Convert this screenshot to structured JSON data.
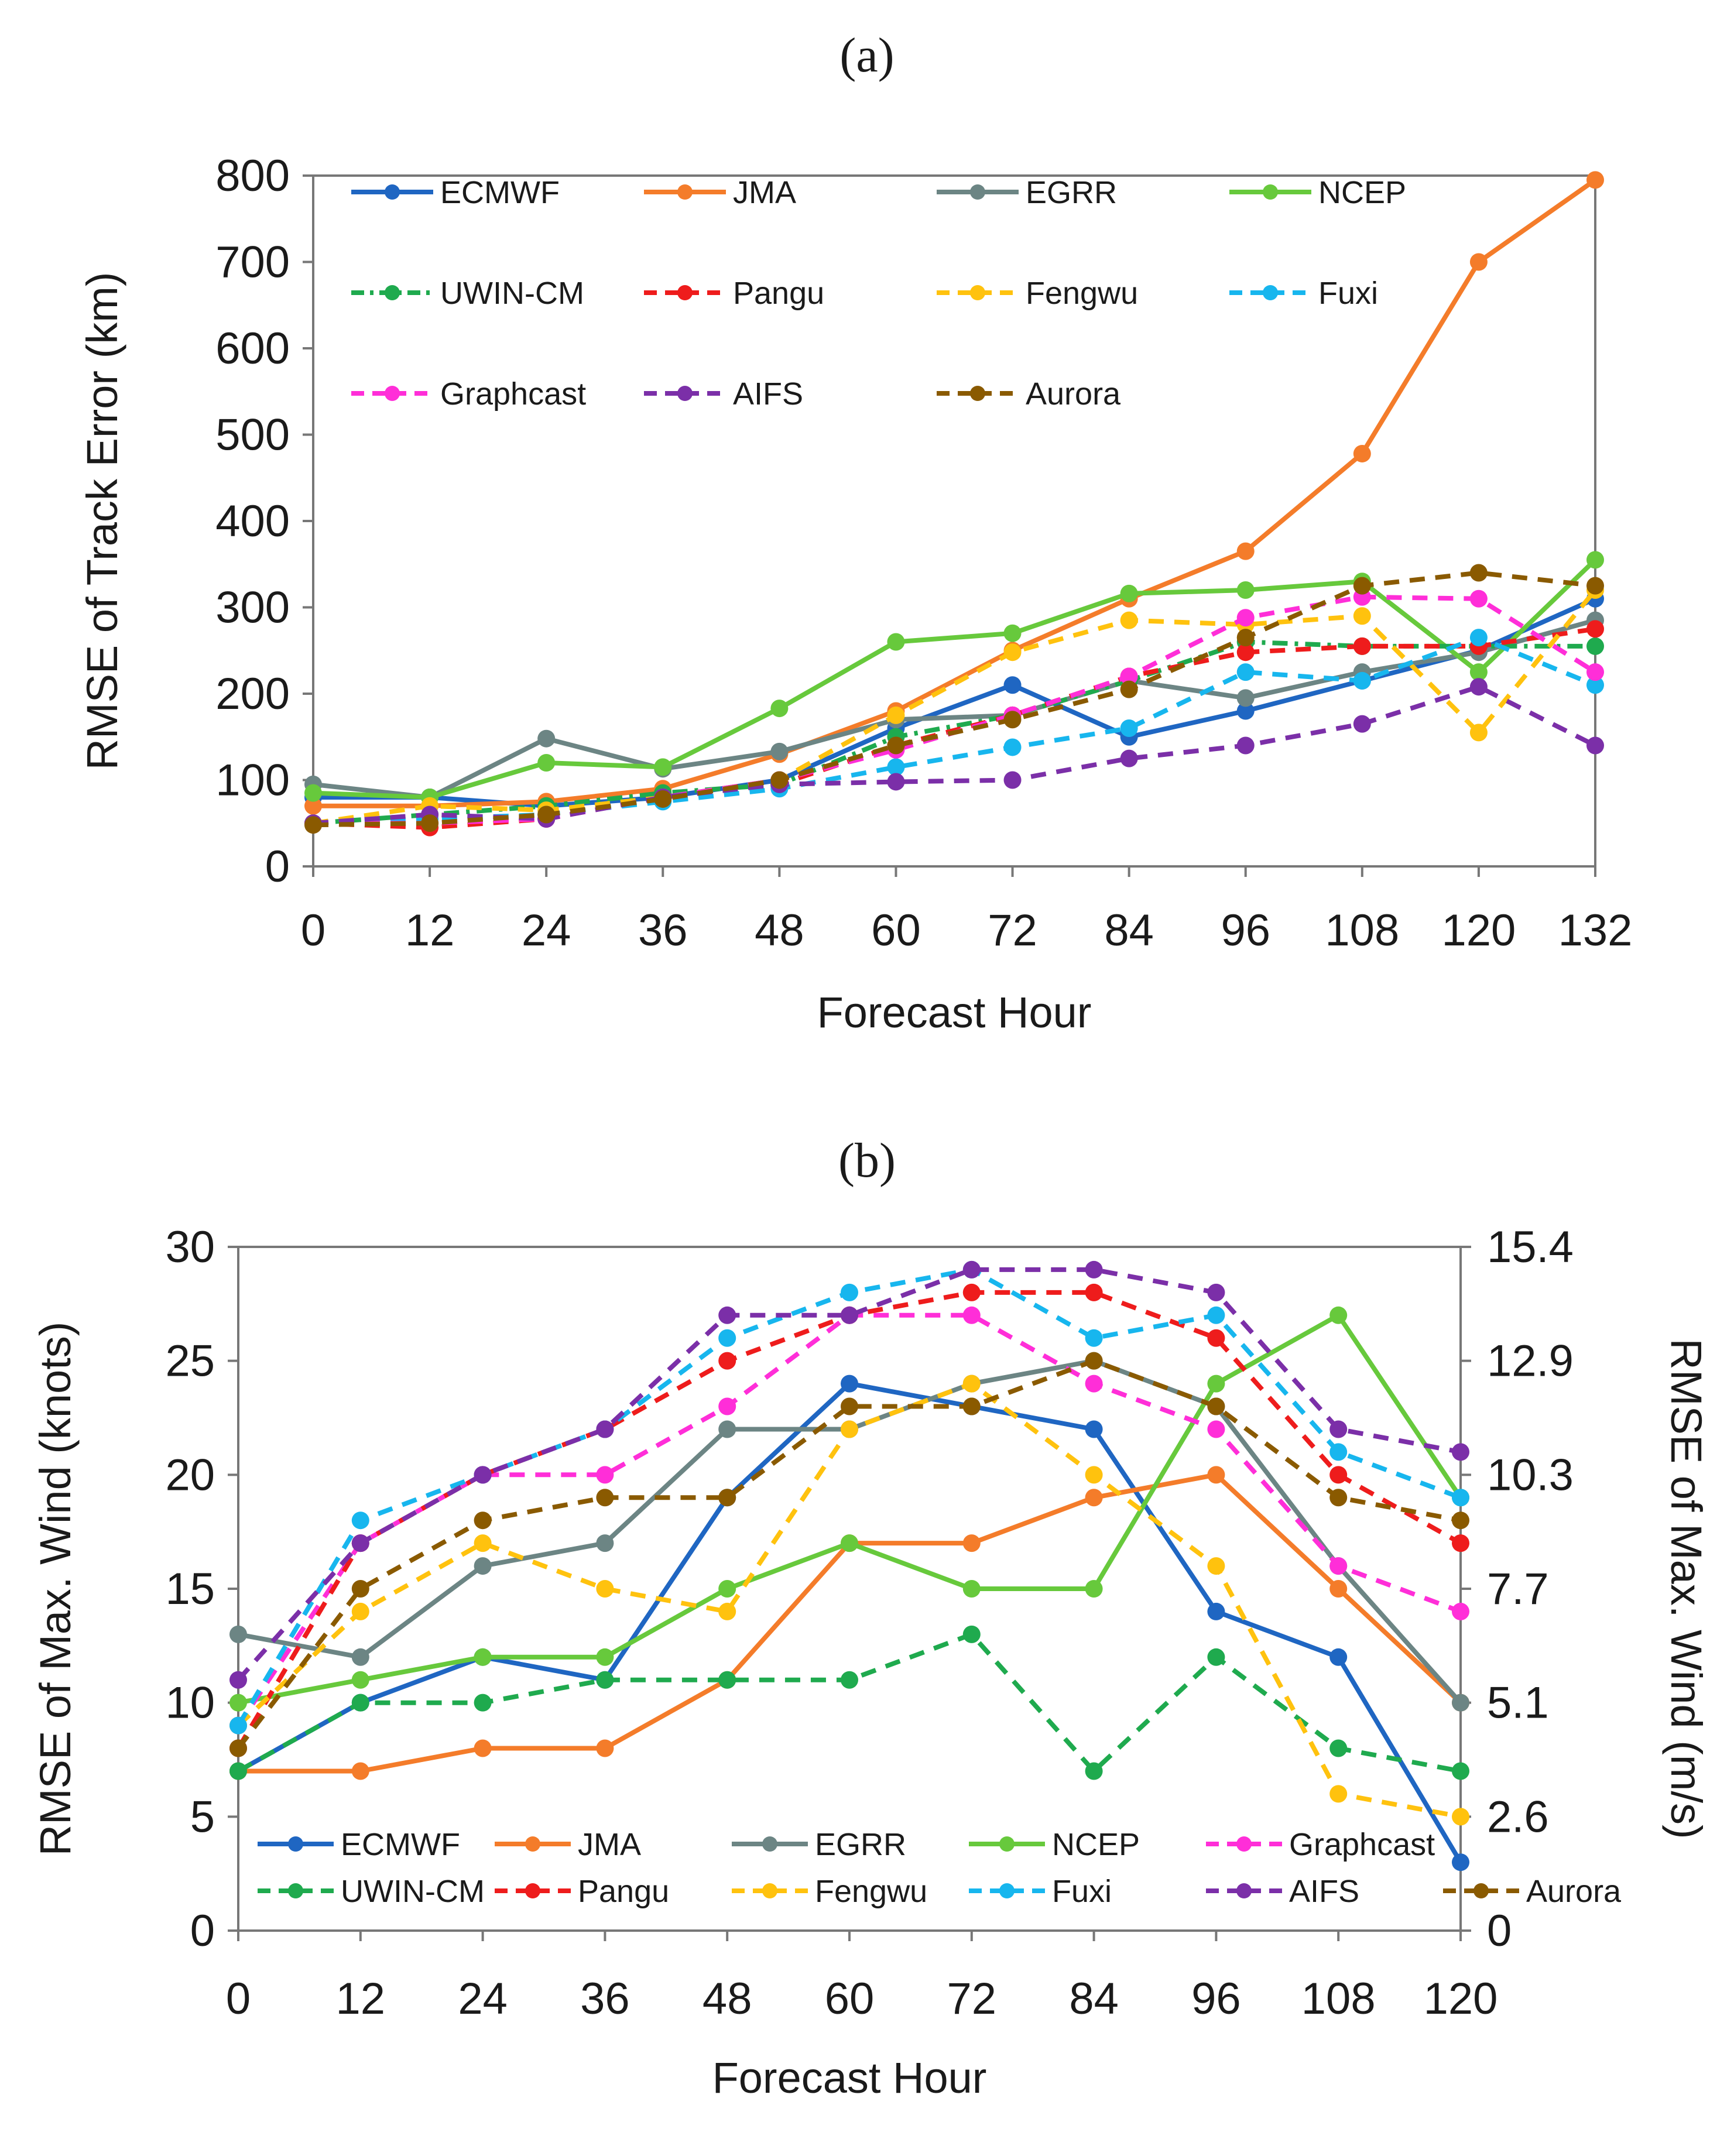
{
  "panels": {
    "a": "(a)",
    "b": "(b)"
  },
  "colors": {
    "ECMWF": "#1f66c2",
    "JMA": "#f47c2a",
    "EGRR": "#6c8584",
    "NCEP": "#67c93c",
    "UWIN-CM": "#1faa4e",
    "Pangu": "#ee1c1c",
    "Fengwu": "#ffc20e",
    "Fuxi": "#17b6ee",
    "Graphcast": "#ff2ed8",
    "AIFS": "#7b2fa8",
    "Aurora": "#8a5a00"
  },
  "chart_data": [
    {
      "id": "a",
      "type": "line",
      "xlabel": "Forecast Hour",
      "ylabel": "RMSE of Track Error (km)",
      "x": [
        0,
        12,
        24,
        36,
        48,
        60,
        72,
        84,
        96,
        108,
        120,
        132
      ],
      "xlim": [
        0,
        132
      ],
      "ylim": [
        0,
        800
      ],
      "yticks": [
        0,
        100,
        200,
        300,
        400,
        500,
        600,
        700,
        800
      ],
      "legend_rows": [
        [
          "ECMWF",
          "JMA",
          "EGRR",
          "NCEP"
        ],
        [
          "UWIN-CM",
          "Pangu",
          "Fengwu",
          "Fuxi"
        ],
        [
          "Graphcast",
          "AIFS",
          "Aurora"
        ]
      ],
      "series": [
        {
          "name": "ECMWF",
          "style": "solid",
          "values": [
            80,
            80,
            70,
            80,
            100,
            160,
            210,
            150,
            180,
            215,
            250,
            310
          ]
        },
        {
          "name": "JMA",
          "style": "solid",
          "values": [
            70,
            70,
            75,
            90,
            130,
            180,
            250,
            310,
            365,
            478,
            700,
            795
          ]
        },
        {
          "name": "EGRR",
          "style": "solid",
          "values": [
            95,
            80,
            148,
            113,
            133,
            170,
            175,
            215,
            195,
            225,
            248,
            285
          ]
        },
        {
          "name": "NCEP",
          "style": "solid",
          "values": [
            85,
            80,
            120,
            115,
            183,
            260,
            270,
            316,
            320,
            330,
            225,
            355
          ]
        },
        {
          "name": "UWIN-CM",
          "style": "dashdot",
          "values": [
            50,
            60,
            70,
            85,
            95,
            150,
            175,
            215,
            260,
            255,
            255,
            255
          ]
        },
        {
          "name": "Pangu",
          "style": "dash",
          "values": [
            50,
            45,
            55,
            80,
            95,
            140,
            175,
            220,
            248,
            255,
            255,
            275
          ]
        },
        {
          "name": "Fengwu",
          "style": "dash",
          "values": [
            50,
            70,
            65,
            80,
            100,
            175,
            248,
            285,
            280,
            290,
            155,
            320
          ]
        },
        {
          "name": "Fuxi",
          "style": "dash",
          "values": [
            50,
            55,
            60,
            75,
            90,
            115,
            138,
            160,
            225,
            215,
            265,
            210
          ]
        },
        {
          "name": "Graphcast",
          "style": "dash",
          "values": [
            50,
            50,
            55,
            80,
            100,
            135,
            175,
            220,
            288,
            312,
            310,
            225
          ]
        },
        {
          "name": "AIFS",
          "style": "dash",
          "values": [
            50,
            60,
            55,
            80,
            95,
            98,
            100,
            125,
            140,
            165,
            208,
            140
          ]
        },
        {
          "name": "Aurora",
          "style": "dash",
          "values": [
            48,
            50,
            60,
            78,
            100,
            140,
            170,
            205,
            265,
            325,
            340,
            325
          ]
        }
      ]
    },
    {
      "id": "b",
      "type": "line",
      "xlabel": "Forecast Hour",
      "ylabel": "RMSE of Max. Wind (knots)",
      "y2label": "RMSE of Max. Wind (m/s)",
      "x": [
        0,
        12,
        24,
        36,
        48,
        60,
        72,
        84,
        96,
        108,
        120
      ],
      "xlim": [
        0,
        120
      ],
      "ylim": [
        0,
        30
      ],
      "yticks": [
        0,
        5,
        10,
        15,
        20,
        25,
        30
      ],
      "y2ticks": [
        "0",
        "2.6",
        "5.1",
        "7.7",
        "10.3",
        "12.9",
        "15.4"
      ],
      "legend_rows": [
        [
          "ECMWF",
          "JMA",
          "EGRR",
          "NCEP",
          "Graphcast"
        ],
        [
          "UWIN-CM",
          "Pangu",
          "Fengwu",
          "Fuxi",
          "AIFS",
          "Aurora"
        ]
      ],
      "series": [
        {
          "name": "ECMWF",
          "style": "solid",
          "values": [
            7,
            10,
            12,
            11,
            19,
            24,
            23,
            22,
            14,
            12,
            3
          ]
        },
        {
          "name": "JMA",
          "style": "solid",
          "values": [
            7,
            7,
            8,
            8,
            11,
            17,
            17,
            19,
            20,
            15,
            10
          ]
        },
        {
          "name": "EGRR",
          "style": "solid",
          "values": [
            13,
            12,
            16,
            17,
            22,
            22,
            24,
            25,
            23,
            16,
            10
          ]
        },
        {
          "name": "NCEP",
          "style": "solid",
          "values": [
            10,
            11,
            12,
            12,
            15,
            17,
            15,
            15,
            24,
            27,
            19
          ]
        },
        {
          "name": "Graphcast",
          "style": "dash",
          "values": [
            9,
            17,
            20,
            20,
            23,
            27,
            27,
            24,
            22,
            16,
            14
          ]
        },
        {
          "name": "UWIN-CM",
          "style": "dash",
          "values": [
            7,
            10,
            10,
            11,
            11,
            11,
            13,
            7,
            12,
            8,
            7
          ]
        },
        {
          "name": "Pangu",
          "style": "dash",
          "values": [
            8,
            17,
            20,
            22,
            25,
            27,
            28,
            28,
            26,
            20,
            17
          ]
        },
        {
          "name": "Fengwu",
          "style": "dash",
          "values": [
            9,
            14,
            17,
            15,
            14,
            22,
            24,
            20,
            16,
            6,
            5
          ]
        },
        {
          "name": "Fuxi",
          "style": "dash",
          "values": [
            9,
            18,
            20,
            22,
            26,
            28,
            29,
            26,
            27,
            21,
            19
          ]
        },
        {
          "name": "AIFS",
          "style": "dash",
          "values": [
            11,
            17,
            20,
            22,
            27,
            27,
            29,
            29,
            28,
            22,
            21
          ]
        },
        {
          "name": "Aurora",
          "style": "dash",
          "values": [
            8,
            15,
            18,
            19,
            19,
            23,
            23,
            25,
            23,
            19,
            18
          ]
        }
      ]
    }
  ]
}
